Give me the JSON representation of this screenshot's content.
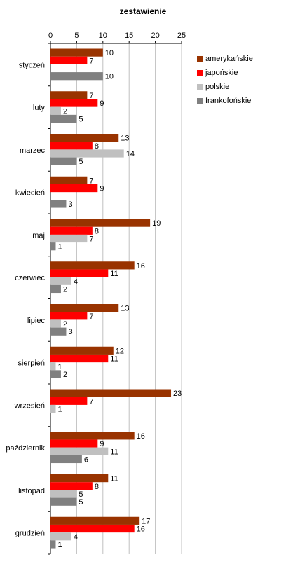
{
  "chart_data": {
    "type": "bar",
    "orientation": "horizontal",
    "title": "zestawienie",
    "xlim": [
      0,
      25
    ],
    "xticks": [
      0,
      5,
      10,
      15,
      20,
      25
    ],
    "categories": [
      "styczeń",
      "luty",
      "marzec",
      "kwiecień",
      "maj",
      "czerwiec",
      "lipiec",
      "sierpień",
      "wrzesień",
      "październik",
      "listopad",
      "grudzień"
    ],
    "series": [
      {
        "name": "amerykańskie",
        "color": "#993300",
        "values": [
          10,
          7,
          13,
          7,
          19,
          16,
          13,
          12,
          23,
          16,
          11,
          17
        ]
      },
      {
        "name": "japońskie",
        "color": "#ff0000",
        "values": [
          7,
          9,
          8,
          9,
          8,
          11,
          7,
          11,
          7,
          9,
          8,
          16
        ]
      },
      {
        "name": "polskie",
        "color": "#c0c0c0",
        "values": [
          null,
          2,
          14,
          null,
          7,
          4,
          2,
          1,
          1,
          11,
          5,
          4
        ]
      },
      {
        "name": "frankofońskie",
        "color": "#808080",
        "values": [
          10,
          5,
          5,
          3,
          1,
          2,
          3,
          2,
          null,
          6,
          5,
          1
        ]
      }
    ],
    "grid": true,
    "legend_position": "right"
  }
}
